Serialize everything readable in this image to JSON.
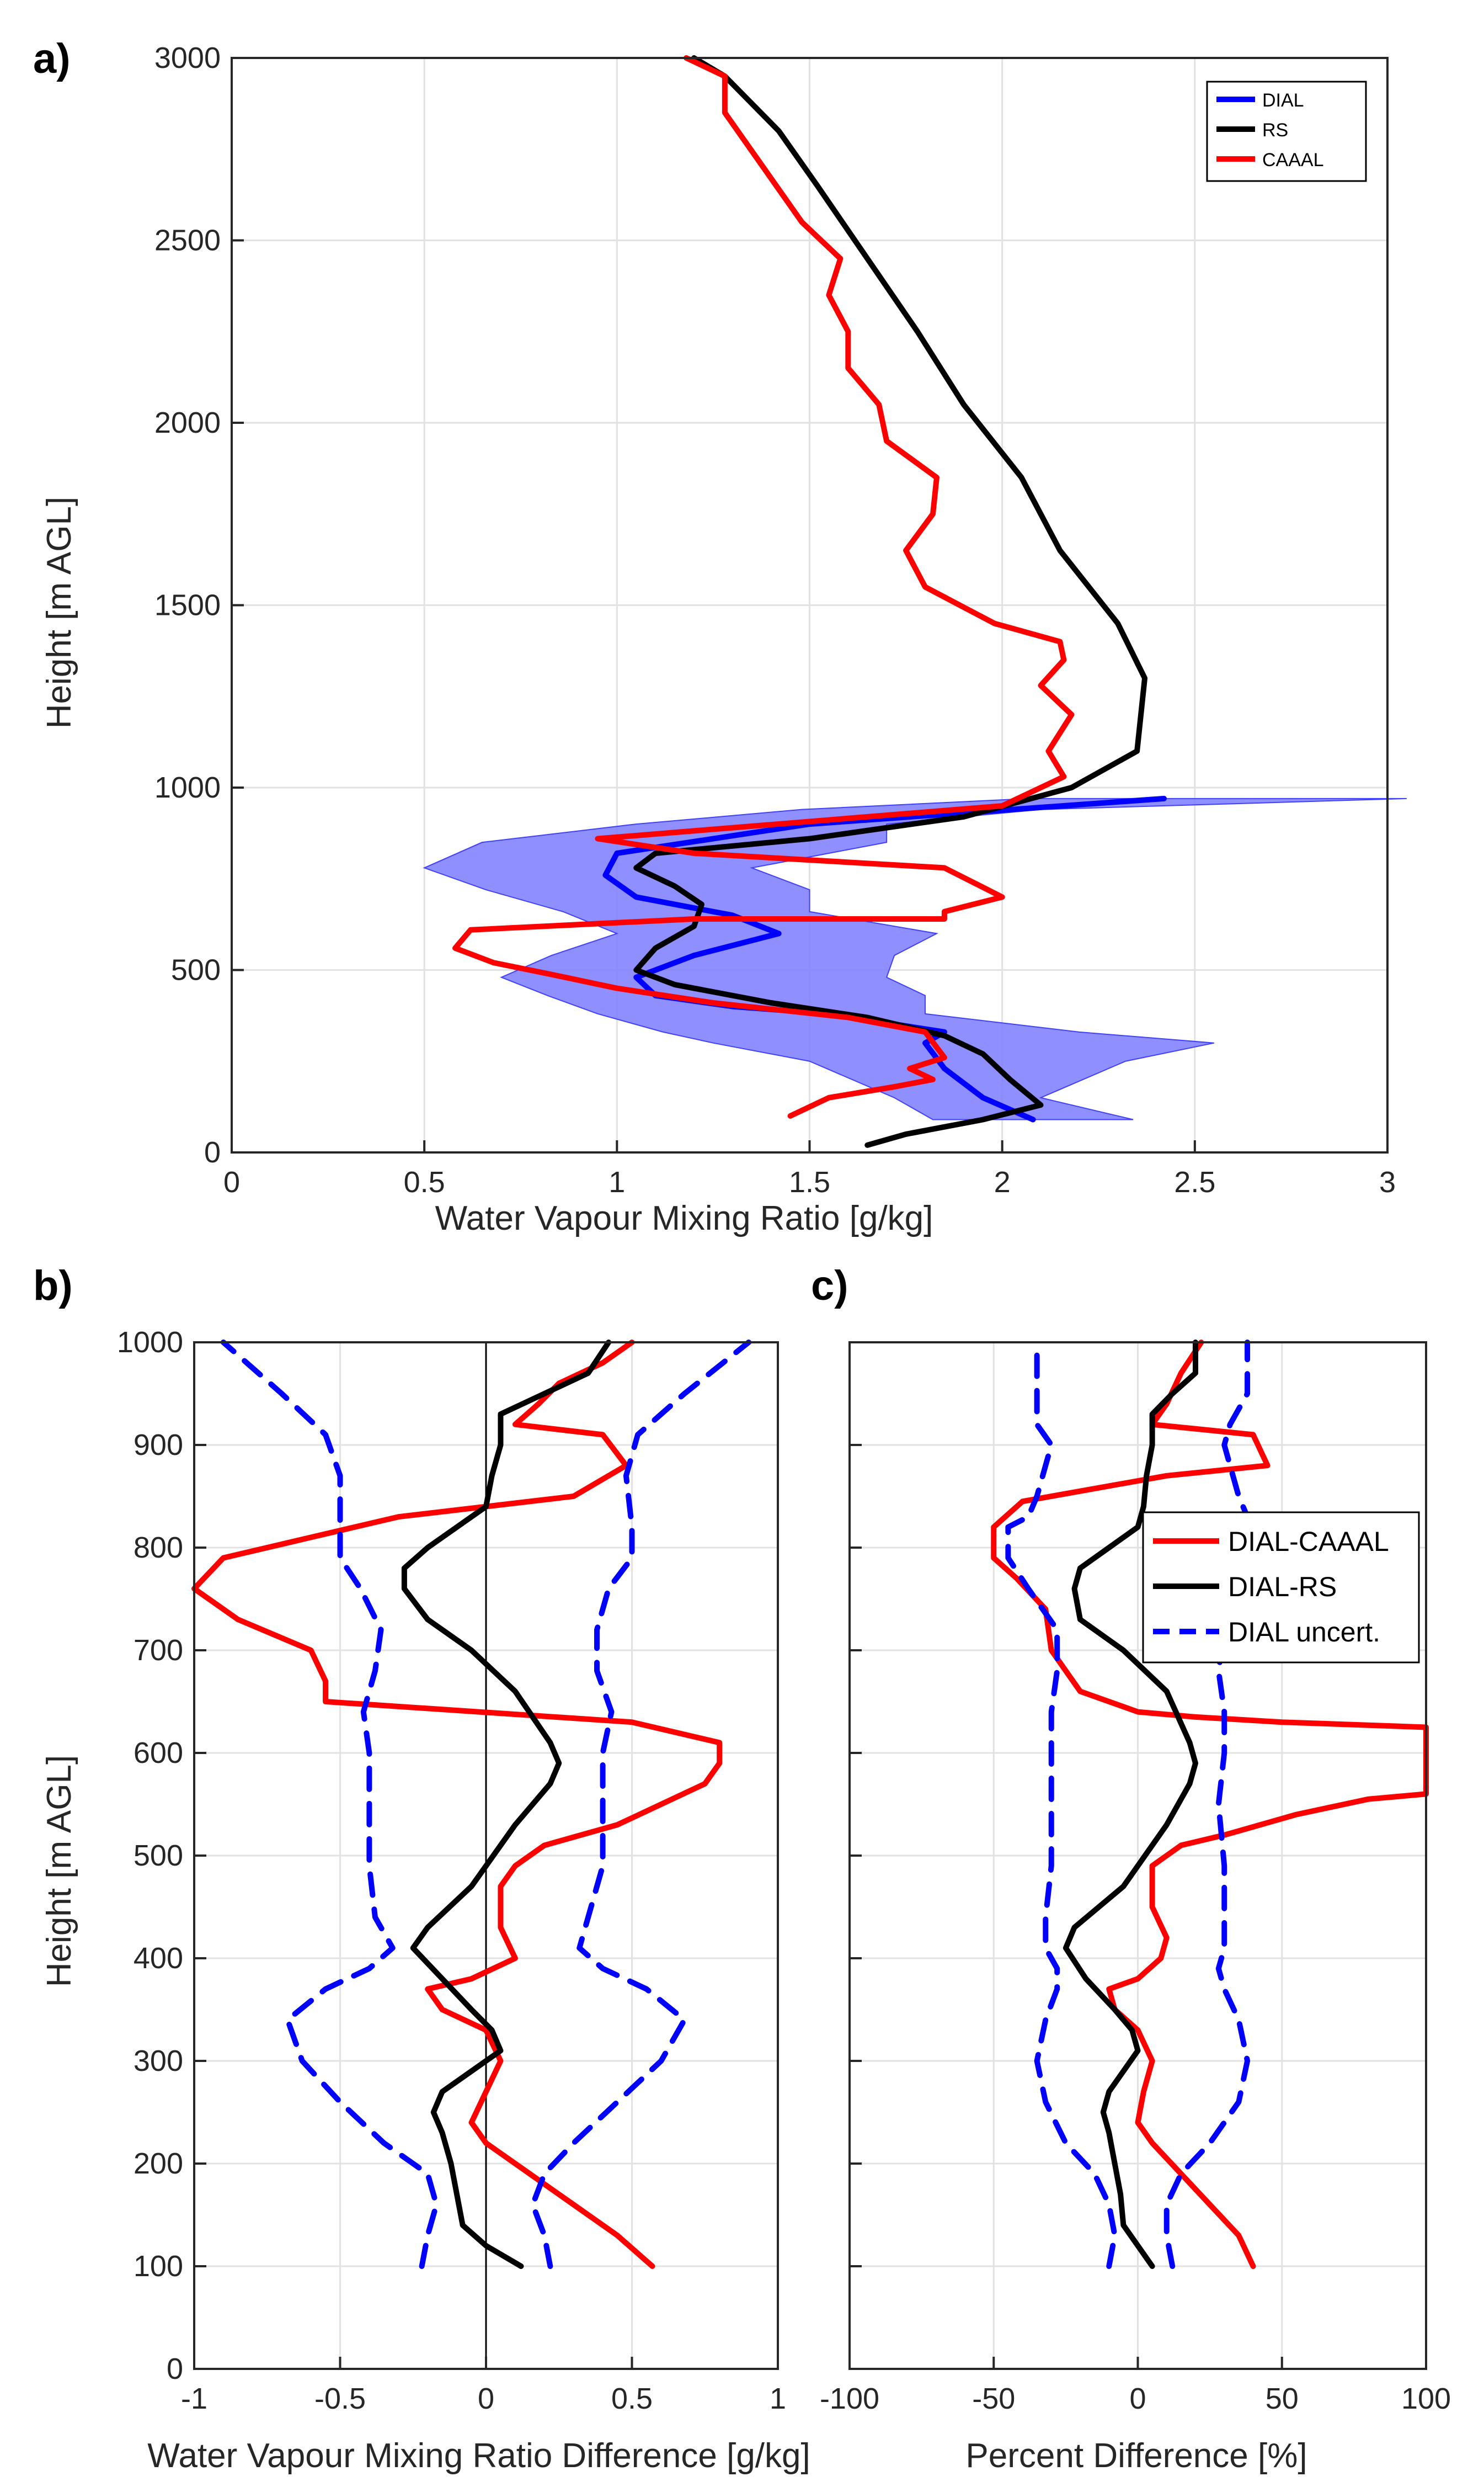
{
  "chart_data": [
    {
      "panel": "a)",
      "type": "line",
      "xlabel": "Water Vapour Mixing Ratio  [g/kg]",
      "ylabel": "Height [m AGL]",
      "xlim": [
        0,
        3
      ],
      "ylim": [
        0,
        3000
      ],
      "xticks": [
        "0",
        "0.5",
        "1",
        "1.5",
        "2",
        "2.5",
        "3"
      ],
      "xtickvals": [
        0,
        0.5,
        1,
        1.5,
        2,
        2.5,
        3
      ],
      "yticks": [
        "0",
        "500",
        "1000",
        "1500",
        "2000",
        "2500",
        "3000"
      ],
      "ytickvals": [
        0,
        500,
        1000,
        1500,
        2000,
        2500,
        3000
      ],
      "grid": true,
      "legend_position": "top-right",
      "band": {
        "name": "DIAL uncertainty",
        "color": "#7b7bff",
        "y": [
          90,
          150,
          250,
          300,
          330,
          380,
          430,
          480,
          540,
          600,
          660,
          720,
          780,
          850,
          900,
          940,
          970
        ],
        "lower": [
          1.82,
          1.72,
          1.5,
          1.25,
          1.12,
          0.95,
          0.82,
          0.7,
          0.83,
          1.0,
          0.86,
          0.66,
          0.5,
          0.65,
          1.05,
          1.48,
          2.07
        ],
        "upper": [
          2.34,
          2.1,
          2.32,
          2.55,
          2.2,
          1.8,
          1.8,
          1.7,
          1.72,
          1.83,
          1.5,
          1.5,
          1.35,
          1.7,
          1.7,
          2.1,
          3.05
        ]
      },
      "series": [
        {
          "name": "DIAL",
          "color": "#0000ff",
          "x": [
            2.08,
            1.95,
            1.85,
            1.8,
            1.85,
            1.55,
            1.3,
            1.1,
            1.05,
            1.2,
            1.42,
            1.3,
            1.05,
            0.97,
            1.0,
            1.5,
            2.42
          ],
          "y": [
            90,
            150,
            230,
            300,
            330,
            380,
            400,
            430,
            480,
            540,
            600,
            650,
            700,
            760,
            820,
            900,
            970
          ]
        },
        {
          "name": "RS",
          "color": "#000000",
          "x": [
            1.65,
            1.75,
            1.95,
            2.1,
            2.02,
            1.95,
            1.85,
            1.65,
            1.4,
            1.15,
            1.05,
            1.1,
            1.2,
            1.22,
            1.15,
            1.05,
            1.1,
            1.5,
            1.9,
            2.18,
            2.35,
            2.37,
            2.3,
            2.15,
            2.05,
            1.9,
            1.78,
            1.65,
            1.52,
            1.42,
            1.28,
            1.2
          ],
          "y": [
            20,
            50,
            90,
            130,
            200,
            270,
            320,
            370,
            410,
            460,
            500,
            560,
            620,
            680,
            730,
            780,
            820,
            860,
            920,
            1000,
            1100,
            1300,
            1450,
            1650,
            1850,
            2050,
            2250,
            2450,
            2650,
            2800,
            2950,
            3000
          ]
        },
        {
          "name": "CAAAL",
          "color": "#ff0000",
          "x": [
            1.45,
            1.55,
            1.72,
            1.82,
            1.76,
            1.85,
            1.8,
            1.6,
            1.25,
            1.0,
            0.82,
            0.68,
            0.58,
            0.62,
            1.2,
            1.85,
            1.85,
            2.0,
            1.85,
            1.2,
            0.95,
            2.0,
            2.16,
            2.12,
            2.18,
            2.1,
            2.16,
            2.15,
            1.98,
            1.8,
            1.75,
            1.82,
            1.83,
            1.7,
            1.68,
            1.6,
            1.6,
            1.55,
            1.58,
            1.48,
            1.38,
            1.28,
            1.28,
            1.18
          ],
          "y": [
            100,
            150,
            180,
            200,
            230,
            260,
            330,
            370,
            410,
            450,
            490,
            520,
            560,
            610,
            640,
            640,
            660,
            700,
            780,
            820,
            860,
            950,
            1030,
            1100,
            1200,
            1280,
            1350,
            1400,
            1450,
            1550,
            1650,
            1750,
            1850,
            1950,
            2050,
            2150,
            2250,
            2350,
            2450,
            2550,
            2700,
            2850,
            2950,
            3000
          ]
        }
      ],
      "legend": [
        "DIAL",
        "RS",
        "CAAAL"
      ]
    },
    {
      "panel": "b)",
      "type": "line",
      "xlabel": "Water Vapour Mixing Ratio Difference [g/kg]",
      "ylabel": "Height [m AGL]",
      "xlim": [
        -1,
        1
      ],
      "ylim": [
        0,
        1000
      ],
      "xticks": [
        "-1",
        "-0.5",
        "0",
        "0.5",
        "1"
      ],
      "xtickvals": [
        -1,
        -0.5,
        0,
        0.5,
        1
      ],
      "yticks": [
        "0",
        "100",
        "200",
        "300",
        "400",
        "500",
        "600",
        "700",
        "800",
        "900",
        "1000"
      ],
      "ytickvals": [
        0,
        100,
        200,
        300,
        400,
        500,
        600,
        700,
        800,
        900,
        1000
      ],
      "grid": true,
      "zero_line": true,
      "series": [
        {
          "name": "DIAL-CAAAL",
          "color": "#ff0000",
          "style": "solid",
          "x": [
            0.57,
            0.45,
            0.3,
            0.15,
            0.0,
            -0.05,
            0.0,
            0.05,
            0.0,
            -0.15,
            -0.2,
            -0.05,
            0.1,
            0.05,
            0.05,
            0.1,
            0.2,
            0.45,
            0.75,
            0.8,
            0.8,
            0.5,
            -0.55,
            -0.55,
            -0.6,
            -0.85,
            -1.0,
            -0.9,
            -0.6,
            -0.3,
            0.3,
            0.48,
            0.4,
            0.1,
            0.18,
            0.25,
            0.4,
            0.5
          ],
          "y": [
            100,
            130,
            160,
            190,
            220,
            240,
            270,
            300,
            330,
            350,
            370,
            380,
            400,
            430,
            470,
            490,
            510,
            530,
            570,
            590,
            610,
            630,
            650,
            670,
            700,
            730,
            760,
            790,
            810,
            830,
            850,
            880,
            910,
            920,
            940,
            960,
            980,
            1000
          ]
        },
        {
          "name": "DIAL-RS",
          "color": "#000000",
          "style": "solid",
          "x": [
            0.12,
            0.0,
            -0.08,
            -0.1,
            -0.12,
            -0.15,
            -0.18,
            -0.15,
            -0.05,
            0.05,
            0.02,
            -0.05,
            -0.15,
            -0.25,
            -0.2,
            -0.05,
            0.1,
            0.22,
            0.25,
            0.22,
            0.1,
            -0.05,
            -0.2,
            -0.28,
            -0.28,
            -0.2,
            -0.1,
            0.0,
            0.02,
            0.05,
            0.05,
            0.2,
            0.35,
            0.42
          ],
          "y": [
            100,
            120,
            140,
            170,
            200,
            230,
            250,
            270,
            290,
            310,
            330,
            350,
            380,
            410,
            430,
            470,
            530,
            570,
            590,
            610,
            660,
            700,
            730,
            760,
            780,
            800,
            820,
            840,
            870,
            900,
            930,
            950,
            970,
            1000
          ]
        },
        {
          "name": "DIAL uncert. (+)",
          "color": "#0000ff",
          "style": "dashed",
          "x": [
            0.22,
            0.2,
            0.16,
            0.2,
            0.3,
            0.45,
            0.6,
            0.68,
            0.55,
            0.4,
            0.32,
            0.35,
            0.4,
            0.4,
            0.4,
            0.43,
            0.38,
            0.38,
            0.42,
            0.5,
            0.5,
            0.48,
            0.52,
            0.68,
            0.9
          ],
          "y": [
            100,
            130,
            160,
            190,
            220,
            260,
            300,
            340,
            370,
            390,
            410,
            440,
            490,
            550,
            600,
            640,
            680,
            720,
            760,
            790,
            820,
            870,
            910,
            950,
            1000
          ]
        },
        {
          "name": "DIAL uncert. (-)",
          "color": "#0000ff",
          "style": "dashed",
          "x": [
            -0.22,
            -0.2,
            -0.17,
            -0.2,
            -0.35,
            -0.5,
            -0.63,
            -0.68,
            -0.55,
            -0.4,
            -0.32,
            -0.38,
            -0.4,
            -0.4,
            -0.4,
            -0.42,
            -0.38,
            -0.36,
            -0.43,
            -0.5,
            -0.5,
            -0.5,
            -0.55,
            -0.7,
            -0.9
          ],
          "y": [
            100,
            130,
            160,
            190,
            220,
            260,
            300,
            340,
            370,
            390,
            410,
            440,
            490,
            550,
            600,
            640,
            680,
            720,
            760,
            790,
            820,
            870,
            910,
            950,
            1000
          ]
        }
      ]
    },
    {
      "panel": "c)",
      "type": "line",
      "xlabel": "Percent Difference [%]",
      "xlim": [
        -100,
        100
      ],
      "ylim": [
        0,
        1000
      ],
      "xticks": [
        "-100",
        "-50",
        "0",
        "50",
        "100"
      ],
      "xtickvals": [
        -100,
        -50,
        0,
        50,
        100
      ],
      "grid": true,
      "legend_position": "top-right",
      "series": [
        {
          "name": "DIAL-CAAAL",
          "color": "#ff0000",
          "style": "solid",
          "x": [
            40,
            35,
            25,
            15,
            5,
            0,
            2,
            5,
            0,
            -8,
            -10,
            0,
            8,
            10,
            5,
            5,
            15,
            30,
            55,
            80,
            100,
            100,
            50,
            20,
            0,
            -20,
            -30,
            -32,
            -42,
            -50,
            -50,
            -40,
            -20,
            10,
            45,
            40,
            5,
            10,
            15,
            22
          ],
          "y": [
            100,
            130,
            160,
            190,
            220,
            240,
            270,
            300,
            330,
            350,
            370,
            380,
            400,
            420,
            450,
            490,
            510,
            520,
            540,
            555,
            560,
            625,
            630,
            635,
            640,
            660,
            700,
            740,
            770,
            790,
            820,
            845,
            855,
            870,
            880,
            910,
            920,
            940,
            970,
            1000
          ]
        },
        {
          "name": "DIAL-RS",
          "color": "#000000",
          "style": "solid",
          "x": [
            5,
            0,
            -5,
            -6,
            -8,
            -10,
            -12,
            -10,
            -5,
            0,
            -2,
            -8,
            -18,
            -25,
            -22,
            -5,
            10,
            18,
            20,
            18,
            10,
            -5,
            -20,
            -22,
            -20,
            -10,
            0,
            2,
            3,
            5,
            5,
            12,
            20,
            20
          ],
          "y": [
            100,
            120,
            140,
            170,
            200,
            230,
            250,
            270,
            290,
            310,
            330,
            350,
            380,
            410,
            430,
            470,
            530,
            570,
            590,
            610,
            660,
            700,
            730,
            760,
            780,
            800,
            820,
            840,
            870,
            900,
            930,
            950,
            970,
            1000
          ]
        },
        {
          "name": "DIAL uncert. (+)",
          "color": "#0000ff",
          "style": "dashed",
          "x": [
            12,
            10,
            10,
            15,
            25,
            35,
            38,
            35,
            30,
            28,
            30,
            30,
            30,
            28,
            30,
            30,
            28,
            30,
            35,
            38,
            40,
            38,
            35,
            32,
            30,
            32,
            38,
            38
          ],
          "y": [
            100,
            130,
            160,
            190,
            220,
            260,
            300,
            340,
            370,
            390,
            410,
            440,
            490,
            550,
            600,
            640,
            680,
            720,
            760,
            790,
            820,
            830,
            850,
            880,
            900,
            920,
            950,
            1000
          ]
        },
        {
          "name": "DIAL uncert. (-)",
          "color": "#0000ff",
          "style": "dashed",
          "x": [
            -10,
            -8,
            -10,
            -15,
            -25,
            -32,
            -35,
            -32,
            -28,
            -28,
            -32,
            -32,
            -30,
            -30,
            -30,
            -30,
            -28,
            -28,
            -38,
            -45,
            -45,
            -38,
            -35,
            -32,
            -30,
            -35,
            -35,
            -35
          ],
          "y": [
            100,
            130,
            160,
            190,
            220,
            260,
            300,
            340,
            370,
            390,
            410,
            440,
            490,
            550,
            600,
            640,
            680,
            720,
            760,
            790,
            820,
            830,
            850,
            880,
            900,
            920,
            950,
            1000
          ]
        }
      ],
      "legend": [
        "DIAL-CAAAL",
        "DIAL-RS",
        "DIAL uncert."
      ]
    }
  ]
}
